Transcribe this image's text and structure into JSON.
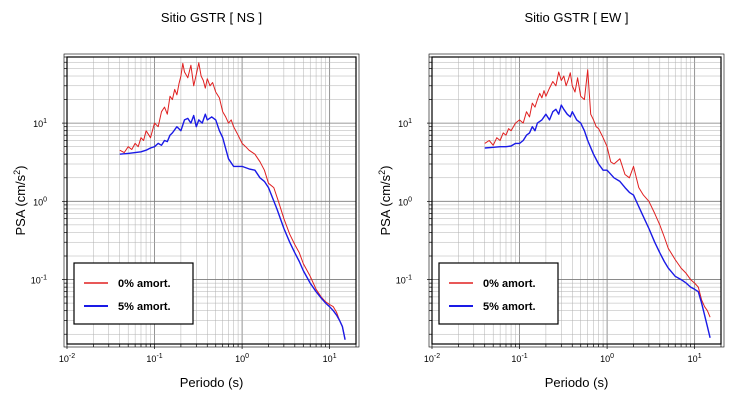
{
  "chart_data": [
    {
      "type": "line",
      "title": "Sitio GSTR [ NS ]",
      "xlabel": "Periodo (s)",
      "ylabel": "PSA (cm/s²)",
      "ylabel_main": "PSA (cm/s",
      "ylabel_sup": "2",
      "ylabel_close": ")",
      "xscale": "log",
      "yscale": "log",
      "xlim": [
        0.01,
        20
      ],
      "ylim": [
        0.015,
        70
      ],
      "x_ticks": [
        {
          "base": "10",
          "exp": "-2",
          "value": 0.01
        },
        {
          "base": "10",
          "exp": "-1",
          "value": 0.1
        },
        {
          "base": "10",
          "exp": "0",
          "value": 1
        },
        {
          "base": "10",
          "exp": "1",
          "value": 10
        }
      ],
      "y_ticks": [
        {
          "base": "10",
          "exp": "1",
          "value": 10
        },
        {
          "base": "10",
          "exp": "0",
          "value": 1
        },
        {
          "base": "10",
          "exp": "-1",
          "value": 0.1
        }
      ],
      "grid": true,
      "legend_position": "bottom-left",
      "series": [
        {
          "name": "0% amort.",
          "color": "#e02020",
          "x": [
            0.04,
            0.045,
            0.05,
            0.055,
            0.06,
            0.065,
            0.07,
            0.075,
            0.08,
            0.09,
            0.1,
            0.11,
            0.12,
            0.13,
            0.14,
            0.15,
            0.16,
            0.17,
            0.18,
            0.19,
            0.2,
            0.21,
            0.22,
            0.24,
            0.26,
            0.28,
            0.3,
            0.32,
            0.34,
            0.36,
            0.38,
            0.4,
            0.43,
            0.46,
            0.5,
            0.55,
            0.6,
            0.65,
            0.7,
            0.75,
            0.8,
            0.9,
            1.0,
            1.1,
            1.2,
            1.4,
            1.6,
            1.8,
            2.0,
            2.3,
            2.6,
            3.0,
            3.5,
            4.0,
            4.5,
            5.0,
            6.0,
            7.0,
            8.0,
            9.0,
            10.0,
            11.0,
            12.0,
            13.0,
            14.0,
            15.0
          ],
          "y": [
            4.5,
            4.2,
            5.0,
            4.6,
            5.5,
            5.0,
            6.5,
            6.0,
            8.0,
            6.5,
            10.0,
            9.0,
            14.0,
            16.0,
            13.0,
            22.0,
            20.0,
            27.0,
            23.0,
            32.0,
            40.0,
            58.0,
            45.0,
            38.0,
            55.0,
            30.0,
            42.0,
            59.0,
            40.0,
            35.0,
            28.0,
            37.0,
            30.0,
            33.0,
            25.0,
            21.0,
            14.0,
            12.0,
            10.0,
            11.0,
            9.0,
            7.0,
            5.5,
            5.0,
            4.5,
            4.0,
            3.2,
            2.5,
            1.7,
            1.5,
            1.0,
            0.6,
            0.38,
            0.28,
            0.22,
            0.16,
            0.11,
            0.075,
            0.06,
            0.052,
            0.048,
            0.045,
            0.038,
            0.03,
            0.025,
            0.017
          ]
        },
        {
          "name": "5% amort.",
          "color": "#1a1ae6",
          "x": [
            0.04,
            0.05,
            0.06,
            0.07,
            0.08,
            0.09,
            0.1,
            0.11,
            0.12,
            0.13,
            0.14,
            0.15,
            0.16,
            0.18,
            0.2,
            0.22,
            0.24,
            0.26,
            0.28,
            0.3,
            0.32,
            0.35,
            0.38,
            0.4,
            0.45,
            0.5,
            0.55,
            0.6,
            0.7,
            0.8,
            0.9,
            1.0,
            1.2,
            1.4,
            1.6,
            1.8,
            2.0,
            2.5,
            3.0,
            3.5,
            4.0,
            4.5,
            5.0,
            6.0,
            7.0,
            8.0,
            9.0,
            10.0,
            11.0,
            12.0,
            13.0,
            14.0,
            15.0
          ],
          "y": [
            4.0,
            4.1,
            4.2,
            4.3,
            4.5,
            4.8,
            5.0,
            5.5,
            5.2,
            6.0,
            5.8,
            7.0,
            7.5,
            9.0,
            8.0,
            11.0,
            11.5,
            10.0,
            12.5,
            9.0,
            11.0,
            10.0,
            13.0,
            11.0,
            12.0,
            11.0,
            8.0,
            6.5,
            3.5,
            2.8,
            2.8,
            2.8,
            2.6,
            2.5,
            2.0,
            1.8,
            1.5,
            0.8,
            0.45,
            0.3,
            0.22,
            0.17,
            0.13,
            0.09,
            0.07,
            0.058,
            0.05,
            0.045,
            0.04,
            0.035,
            0.03,
            0.025,
            0.017
          ]
        }
      ]
    },
    {
      "type": "line",
      "title": "Sitio GSTR [ EW ]",
      "xlabel": "Periodo (s)",
      "ylabel": "PSA (cm/s²)",
      "ylabel_main": "PSA (cm/s",
      "ylabel_sup": "2",
      "ylabel_close": ")",
      "xscale": "log",
      "yscale": "log",
      "xlim": [
        0.01,
        20
      ],
      "ylim": [
        0.015,
        70
      ],
      "x_ticks": [
        {
          "base": "10",
          "exp": "-2",
          "value": 0.01
        },
        {
          "base": "10",
          "exp": "-1",
          "value": 0.1
        },
        {
          "base": "10",
          "exp": "0",
          "value": 1
        },
        {
          "base": "10",
          "exp": "1",
          "value": 10
        }
      ],
      "y_ticks": [
        {
          "base": "10",
          "exp": "1",
          "value": 10
        },
        {
          "base": "10",
          "exp": "0",
          "value": 1
        },
        {
          "base": "10",
          "exp": "-1",
          "value": 0.1
        }
      ],
      "grid": true,
      "legend_position": "bottom-left",
      "series": [
        {
          "name": "0% amort.",
          "color": "#e02020",
          "x": [
            0.04,
            0.045,
            0.05,
            0.055,
            0.06,
            0.065,
            0.07,
            0.075,
            0.08,
            0.09,
            0.1,
            0.11,
            0.12,
            0.13,
            0.14,
            0.15,
            0.16,
            0.17,
            0.18,
            0.19,
            0.2,
            0.22,
            0.24,
            0.26,
            0.28,
            0.3,
            0.32,
            0.34,
            0.36,
            0.38,
            0.4,
            0.43,
            0.46,
            0.5,
            0.55,
            0.6,
            0.65,
            0.7,
            0.75,
            0.8,
            0.9,
            1.0,
            1.1,
            1.2,
            1.4,
            1.6,
            1.8,
            2.0,
            2.3,
            2.6,
            3.0,
            3.5,
            4.0,
            4.5,
            5.0,
            6.0,
            7.0,
            8.0,
            9.0,
            10.0,
            11.0,
            12.0,
            13.0,
            14.0,
            15.0
          ],
          "y": [
            5.5,
            6.0,
            5.2,
            6.5,
            6.0,
            7.5,
            7.0,
            8.5,
            8.0,
            10.0,
            11.0,
            10.0,
            14.0,
            12.0,
            18.0,
            16.0,
            20.0,
            24.0,
            21.0,
            26.0,
            22.0,
            28.0,
            34.0,
            30.0,
            45.0,
            35.0,
            40.0,
            30.0,
            36.0,
            44.0,
            30.0,
            25.0,
            38.0,
            22.0,
            20.0,
            48.0,
            13.0,
            11.0,
            9.0,
            8.5,
            6.5,
            5.0,
            3.2,
            3.0,
            3.5,
            2.2,
            2.0,
            2.8,
            1.5,
            1.2,
            1.0,
            0.7,
            0.5,
            0.35,
            0.25,
            0.18,
            0.14,
            0.12,
            0.1,
            0.09,
            0.08,
            0.055,
            0.045,
            0.04,
            0.033
          ]
        },
        {
          "name": "5% amort.",
          "color": "#1a1ae6",
          "x": [
            0.04,
            0.05,
            0.06,
            0.07,
            0.08,
            0.09,
            0.1,
            0.11,
            0.12,
            0.13,
            0.14,
            0.15,
            0.16,
            0.18,
            0.2,
            0.22,
            0.24,
            0.26,
            0.28,
            0.3,
            0.32,
            0.35,
            0.38,
            0.4,
            0.45,
            0.5,
            0.55,
            0.6,
            0.7,
            0.8,
            0.9,
            1.0,
            1.2,
            1.4,
            1.6,
            1.8,
            2.0,
            2.5,
            3.0,
            3.5,
            4.0,
            4.5,
            5.0,
            6.0,
            7.0,
            8.0,
            9.0,
            10.0,
            11.0,
            12.0,
            13.0,
            14.0,
            15.0
          ],
          "y": [
            4.8,
            4.9,
            5.0,
            5.0,
            5.1,
            5.5,
            5.5,
            6.0,
            7.0,
            7.5,
            9.0,
            8.0,
            10.0,
            11.0,
            13.0,
            11.0,
            14.0,
            15.0,
            13.0,
            17.0,
            15.0,
            13.0,
            12.0,
            14.0,
            11.0,
            10.0,
            8.0,
            6.0,
            4.0,
            3.0,
            2.5,
            2.5,
            2.0,
            1.8,
            1.5,
            1.3,
            1.2,
            0.7,
            0.45,
            0.3,
            0.22,
            0.17,
            0.14,
            0.11,
            0.1,
            0.09,
            0.08,
            0.075,
            0.07,
            0.05,
            0.035,
            0.025,
            0.018
          ]
        }
      ]
    }
  ]
}
